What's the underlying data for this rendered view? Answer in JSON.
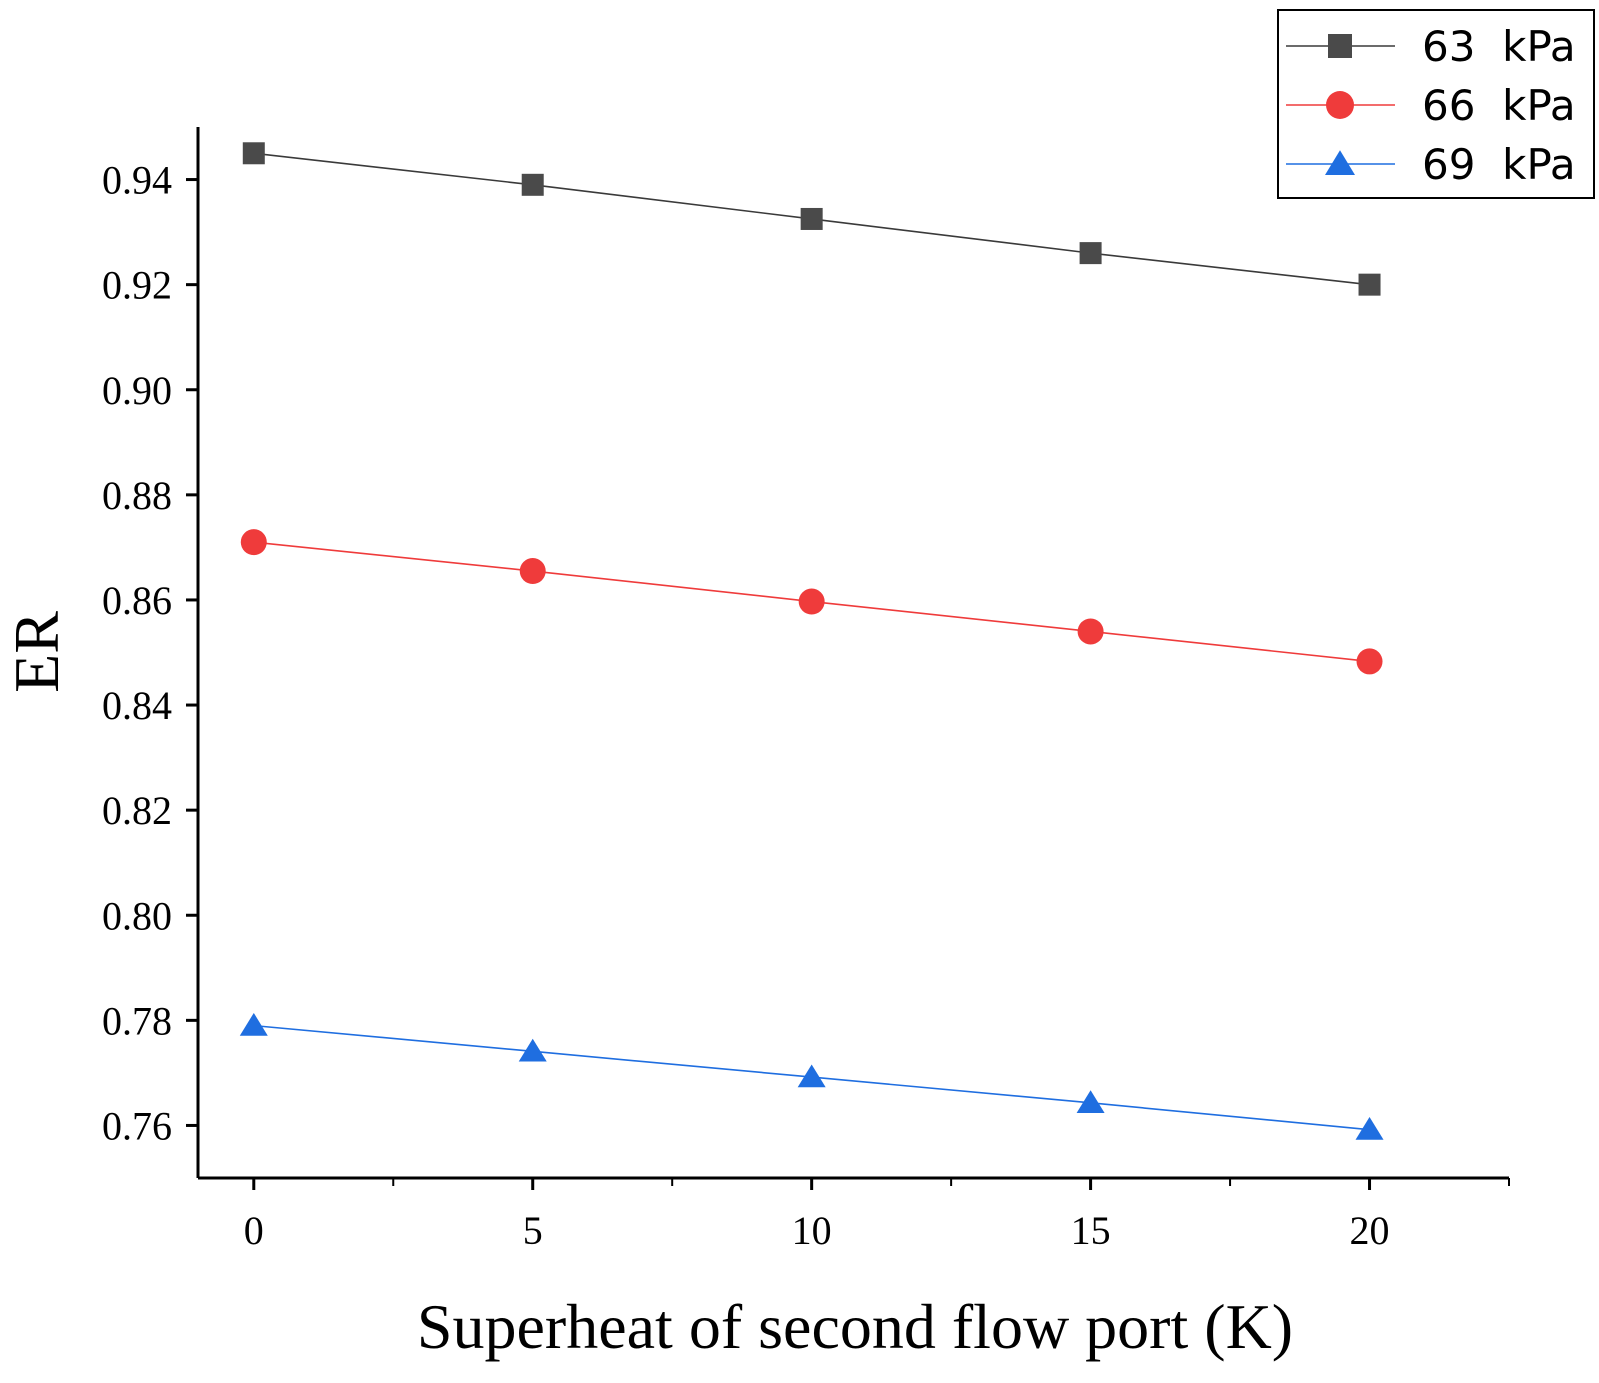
{
  "chart_data": {
    "type": "line",
    "title": "",
    "xlabel": "Superheat of second flow port (K)",
    "ylabel": "ER",
    "x": [
      0,
      5,
      10,
      15,
      20
    ],
    "xlim": [
      -1,
      22.5
    ],
    "ylim": [
      0.75,
      0.95
    ],
    "xticks": [
      0,
      5,
      10,
      15,
      20
    ],
    "xtick_labels": [
      "0",
      "5",
      "10",
      "15",
      "20"
    ],
    "yticks": [
      0.76,
      0.78,
      0.8,
      0.82,
      0.84,
      0.86,
      0.88,
      0.9,
      0.92,
      0.94
    ],
    "ytick_labels": [
      "0.76",
      "0.78",
      "0.80",
      "0.82",
      "0.84",
      "0.86",
      "0.88",
      "0.90",
      "0.92",
      "0.94"
    ],
    "grid": false,
    "legend_position": "top-right",
    "series": [
      {
        "name": "63  kPa",
        "marker": "square",
        "color": "#4a4a4a",
        "line_color": "#3a3a3a",
        "values": [
          0.945,
          0.939,
          0.9325,
          0.926,
          0.92
        ]
      },
      {
        "name": "66  kPa",
        "marker": "circle",
        "color": "#ef3b3b",
        "line_color": "#ef3b3b",
        "values": [
          0.871,
          0.8655,
          0.8597,
          0.854,
          0.8483
        ]
      },
      {
        "name": "69  kPa",
        "marker": "triangle",
        "color": "#1f6ee0",
        "line_color": "#1f6ee0",
        "values": [
          0.779,
          0.7741,
          0.7692,
          0.7643,
          0.7592
        ]
      }
    ]
  }
}
